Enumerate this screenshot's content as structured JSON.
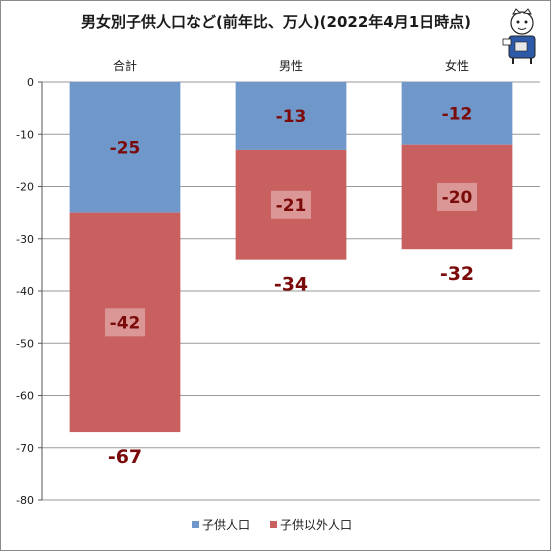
{
  "title": "男女別子供人口など(前年比、万人)(2022年4月1日時点)",
  "chart_data": {
    "type": "bar",
    "stacked": true,
    "categories": [
      "合計",
      "男性",
      "女性"
    ],
    "series": [
      {
        "name": "子供人口",
        "values": [
          -25,
          -13,
          -12
        ],
        "color": "#6f97c9"
      },
      {
        "name": "子供以外人口",
        "values": [
          -42,
          -21,
          -20
        ],
        "color": "#c8605f"
      }
    ],
    "totals": [
      -67,
      -34,
      -32
    ],
    "ylim": [
      -80,
      0
    ],
    "yticks": [
      0,
      -10,
      -20,
      -30,
      -40,
      -50,
      -60,
      -70,
      -80
    ],
    "category_axis_position": "top",
    "grid": true,
    "legend_position": "bottom"
  }
}
